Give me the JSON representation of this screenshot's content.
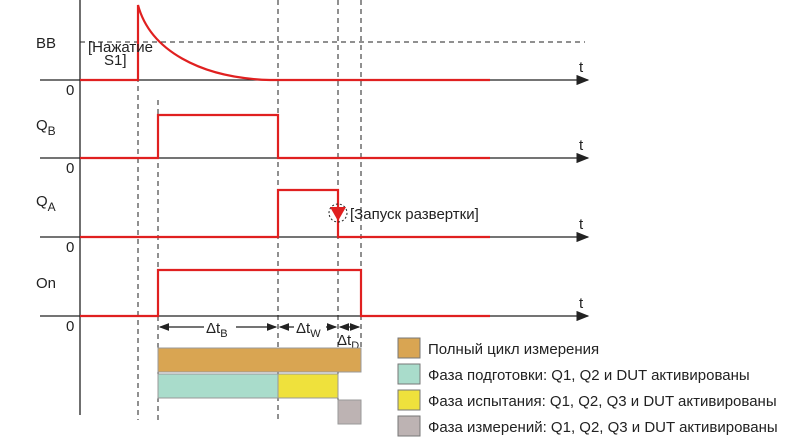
{
  "signals": [
    {
      "label": "BB",
      "zero": "0",
      "axis": "t"
    },
    {
      "label": "Q",
      "subscript": "B",
      "zero": "0",
      "axis": "t"
    },
    {
      "label": "Q",
      "subscript": "A",
      "zero": "0",
      "axis": "t"
    },
    {
      "label": "On",
      "zero": "0",
      "axis": "t"
    }
  ],
  "press_note": [
    "[Нажатие",
    "S1]"
  ],
  "sweep_note": "[Запуск развертки]",
  "intervals": [
    {
      "label": "Δt",
      "subscript": "B"
    },
    {
      "label": "Δt",
      "subscript": "W"
    },
    {
      "label": "Δt",
      "subscript": "D"
    }
  ],
  "legend": [
    "Полный цикл измерения",
    "Фаза подготовки: Q1, Q2 и DUT активированы",
    "Фаза испытания: Q1, Q2, Q3 и DUT активированы",
    "Фаза измерений: Q1, Q2, Q3 и DUT активированы"
  ]
}
